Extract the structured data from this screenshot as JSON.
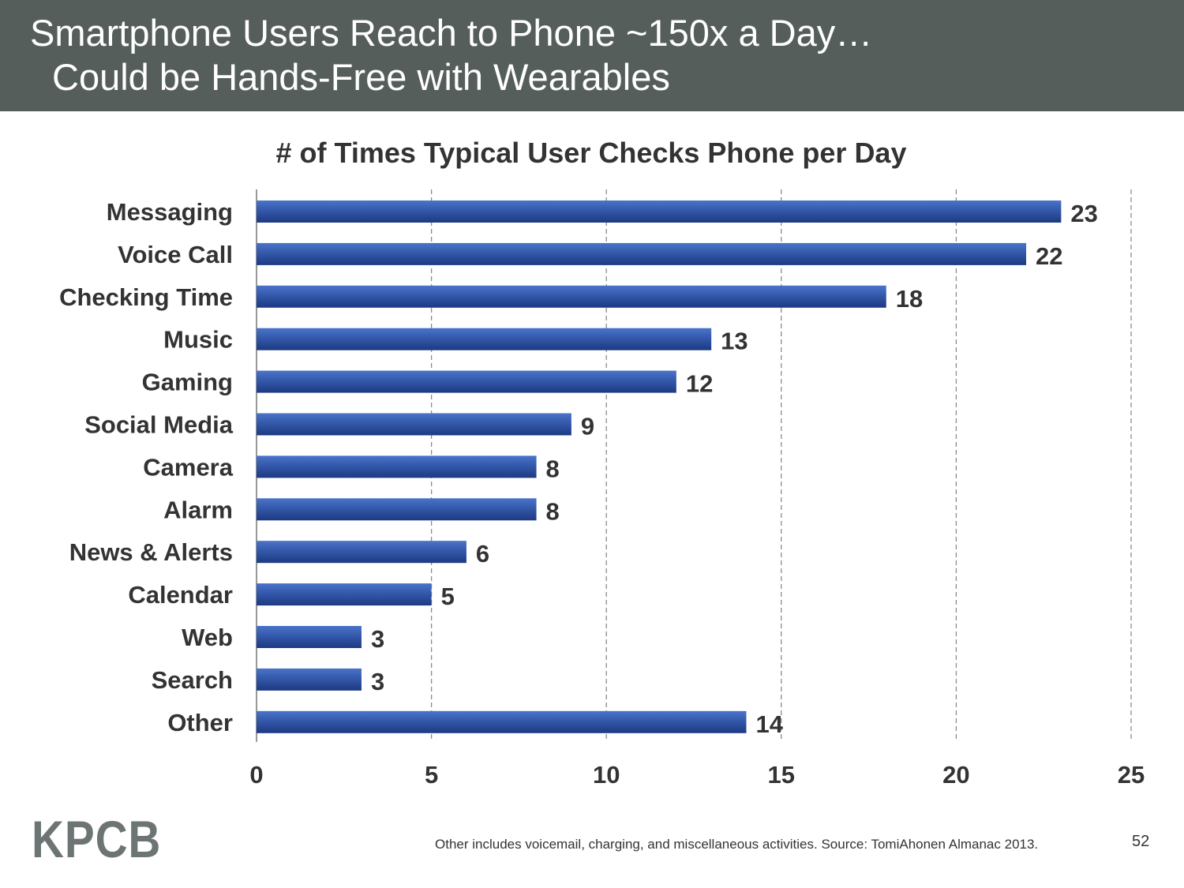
{
  "header": {
    "title_line1": "Smartphone Users Reach to Phone ~150x a Day…",
    "title_line2": "Could be Hands-Free with Wearables"
  },
  "colors": {
    "header_bg": "#565e5c",
    "bar_dark": "#1d3a82",
    "bar_light": "#4a74c9",
    "grid": "#8c8c8c",
    "text": "#333333"
  },
  "chart_data": {
    "type": "bar",
    "orientation": "horizontal",
    "title": "# of Times Typical User Checks Phone per Day",
    "categories": [
      "Messaging",
      "Voice Call",
      "Checking Time",
      "Music",
      "Gaming",
      "Social Media",
      "Camera",
      "Alarm",
      "News & Alerts",
      "Calendar",
      "Web",
      "Search",
      "Other"
    ],
    "values": [
      23,
      22,
      18,
      13,
      12,
      9,
      8,
      8,
      6,
      5,
      3,
      3,
      14
    ],
    "xlim": [
      0,
      25
    ],
    "xticks": [
      0,
      5,
      10,
      15,
      20,
      25
    ],
    "xlabel": "",
    "ylabel": "",
    "grid": "vertical dashed",
    "data_labels": true
  },
  "footer": {
    "logo": "KPCB",
    "note": "Other includes voicemail, charging, and miscellaneous activities. Source: TomiAhonen Almanac 2013.",
    "page_number": "52"
  }
}
